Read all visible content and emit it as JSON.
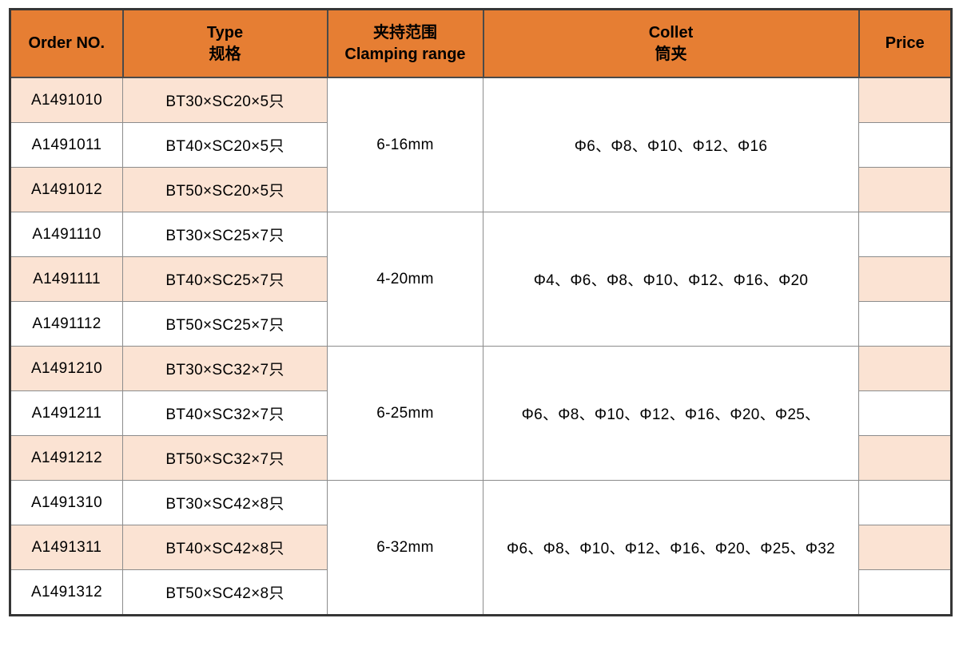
{
  "colors": {
    "header_bg": "#E67E33",
    "row_shaded_bg": "#FBE3D3",
    "border_outer": "#363636",
    "border_header": "#4a4a4a",
    "border_inner": "#8c8c8c"
  },
  "table": {
    "columns": [
      {
        "id": "order_no",
        "line1": "Order NO.",
        "line2": ""
      },
      {
        "id": "type",
        "line1": "Type",
        "line2": "规格"
      },
      {
        "id": "clamping_range",
        "line1": "夹持范围",
        "line2": "Clamping range"
      },
      {
        "id": "collet",
        "line1": "Collet",
        "line2": "筒夹"
      },
      {
        "id": "price",
        "line1": "Price",
        "line2": ""
      }
    ],
    "groups": [
      {
        "clamping_range": "6-16mm",
        "collets": "Φ6、Φ8、Φ10、Φ12、Φ16",
        "rows": [
          {
            "order_no": "A1491010",
            "type": "BT30×SC20×5只",
            "price": "",
            "shaded": true
          },
          {
            "order_no": "A1491011",
            "type": "BT40×SC20×5只",
            "price": "",
            "shaded": false
          },
          {
            "order_no": "A1491012",
            "type": "BT50×SC20×5只",
            "price": "",
            "shaded": true
          }
        ]
      },
      {
        "clamping_range": "4-20mm",
        "collets": "Φ4、Φ6、Φ8、Φ10、Φ12、Φ16、Φ20",
        "rows": [
          {
            "order_no": "A1491110",
            "type": "BT30×SC25×7只",
            "price": "",
            "shaded": false
          },
          {
            "order_no": "A1491111",
            "type": "BT40×SC25×7只",
            "price": "",
            "shaded": true
          },
          {
            "order_no": "A1491112",
            "type": "BT50×SC25×7只",
            "price": "",
            "shaded": false
          }
        ]
      },
      {
        "clamping_range": "6-25mm",
        "collets": "Φ6、Φ8、Φ10、Φ12、Φ16、Φ20、Φ25、",
        "rows": [
          {
            "order_no": "A1491210",
            "type": "BT30×SC32×7只",
            "price": "",
            "shaded": true
          },
          {
            "order_no": "A1491211",
            "type": "BT40×SC32×7只",
            "price": "",
            "shaded": false
          },
          {
            "order_no": "A1491212",
            "type": "BT50×SC32×7只",
            "price": "",
            "shaded": true
          }
        ]
      },
      {
        "clamping_range": "6-32mm",
        "collets": "Φ6、Φ8、Φ10、Φ12、Φ16、Φ20、Φ25、Φ32",
        "rows": [
          {
            "order_no": "A1491310",
            "type": "BT30×SC42×8只",
            "price": "",
            "shaded": false
          },
          {
            "order_no": "A1491311",
            "type": "BT40×SC42×8只",
            "price": "",
            "shaded": true
          },
          {
            "order_no": "A1491312",
            "type": "BT50×SC42×8只",
            "price": "",
            "shaded": false
          }
        ]
      }
    ]
  }
}
